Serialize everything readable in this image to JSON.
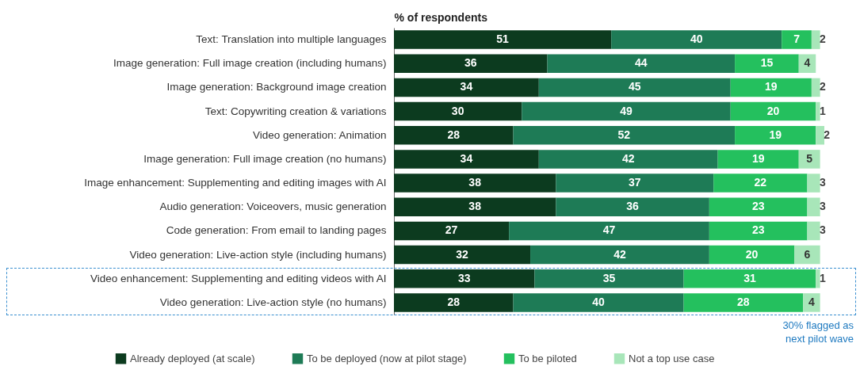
{
  "chart_data": {
    "type": "bar",
    "orientation": "horizontal",
    "stacked": true,
    "xlabel": "% of respondents",
    "xlim": [
      0,
      101
    ],
    "data_labels": true,
    "legend": "bottom",
    "grid": false,
    "categories": [
      "Text: Translation into multiple languages",
      "Image generation: Full image creation (including humans)",
      "Image generation: Background image creation",
      "Text: Copywriting creation & variations",
      "Video generation: Animation",
      "Image generation: Full image creation (no humans)",
      "Image enhancement: Supplementing and editing images with AI",
      "Audio generation: Voiceovers, music generation",
      "Code generation: From email to landing pages",
      "Video generation: Live-action style (including humans)",
      "Video enhancement: Supplementing and editing videos with AI",
      "Video generation: Live-action style (no humans)"
    ],
    "series": [
      {
        "name": "Already deployed (at scale)",
        "color": "#0c3b1f",
        "values": [
          51,
          36,
          34,
          30,
          28,
          34,
          38,
          38,
          27,
          32,
          33,
          28
        ]
      },
      {
        "name": "To be deployed (now at pilot stage)",
        "color": "#1e7b56",
        "values": [
          40,
          44,
          45,
          49,
          52,
          42,
          37,
          36,
          47,
          42,
          35,
          40
        ]
      },
      {
        "name": "To be piloted",
        "color": "#24c05e",
        "values": [
          7,
          15,
          19,
          20,
          19,
          19,
          22,
          23,
          23,
          20,
          31,
          28
        ]
      },
      {
        "name": "Not a top use case",
        "color": "#a8e6b9",
        "values": [
          2,
          4,
          2,
          1,
          2,
          5,
          3,
          3,
          3,
          6,
          1,
          4
        ]
      }
    ],
    "annotations": [
      "30% flagged as next pilot wave"
    ]
  }
}
